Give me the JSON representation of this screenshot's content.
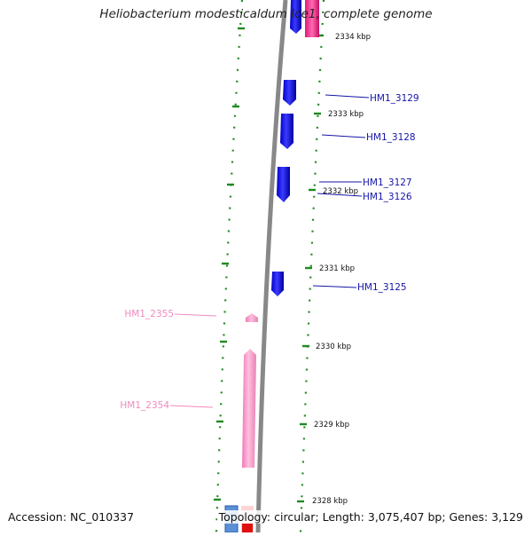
{
  "title": "Heliobacterium modesticaldum Ice1, complete genome",
  "footer": {
    "accession": "Accession: NC_010337",
    "summary": "Topology: circular; Length: 3,075,407 bp; Genes: 3,129"
  },
  "colors": {
    "forward_gene": "#1010e0",
    "reverse_gene": "#f59ac8",
    "backbone": "#888888",
    "tick": "#1f8a1f",
    "forward_label": "#1515a8",
    "reverse_label": "#f08ac0"
  },
  "scale_labels": [
    "2334 kbp",
    "2333 kbp",
    "2332 kbp",
    "2331 kbp",
    "2330 kbp",
    "2329 kbp",
    "2328 kbp"
  ],
  "gene_labels": {
    "forward": [
      "HM1_3129",
      "HM1_3128",
      "HM1_3127",
      "HM1_3126",
      "HM1_3125"
    ],
    "reverse": [
      "HM1_2355",
      "HM1_2354"
    ]
  }
}
